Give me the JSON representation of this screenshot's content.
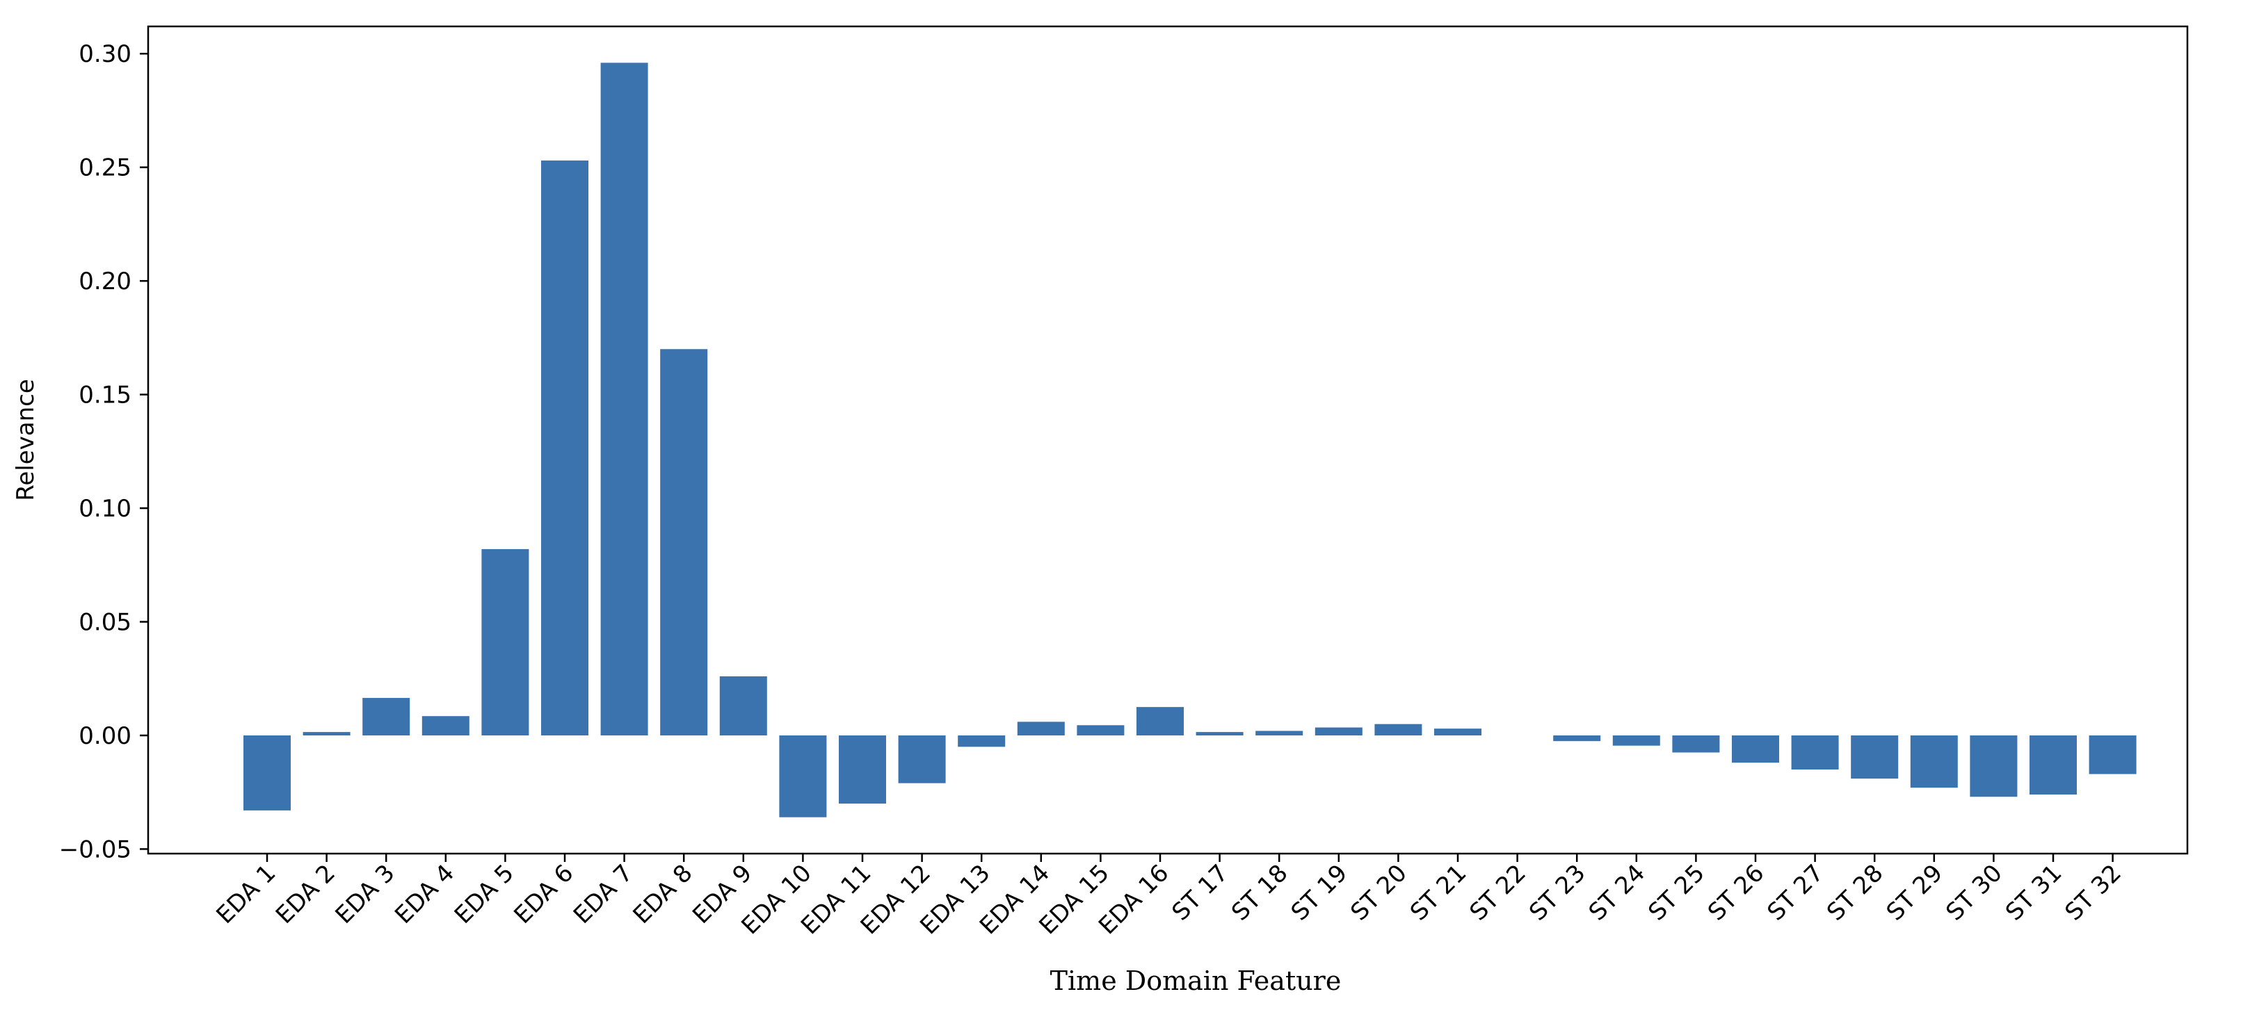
{
  "chart_data": {
    "type": "bar",
    "title": "",
    "xlabel": "Time Domain Feature",
    "ylabel": "Relevance",
    "ylim": [
      -0.052,
      0.312
    ],
    "yticks": [
      -0.05,
      0.0,
      0.05,
      0.1,
      0.15,
      0.2,
      0.25,
      0.3
    ],
    "ytick_labels": [
      "−0.05",
      "0.00",
      "0.05",
      "0.10",
      "0.15",
      "0.20",
      "0.25",
      "0.30"
    ],
    "grid": false,
    "legend": "none",
    "bar_color": "#3a73ae",
    "categories": [
      "EDA 1",
      "EDA 2",
      "EDA 3",
      "EDA 4",
      "EDA 5",
      "EDA 6",
      "EDA 7",
      "EDA 8",
      "EDA 9",
      "EDA 10",
      "EDA 11",
      "EDA 12",
      "EDA 13",
      "EDA 14",
      "EDA 15",
      "EDA 16",
      "ST 17",
      "ST 18",
      "ST 19",
      "ST 20",
      "ST 21",
      "ST 22",
      "ST 23",
      "ST 24",
      "ST 25",
      "ST 26",
      "ST 27",
      "ST 28",
      "ST 29",
      "ST 30",
      "ST 31",
      "ST 32"
    ],
    "values": [
      -0.033,
      0.0015,
      0.0165,
      0.0085,
      0.082,
      0.253,
      0.296,
      0.17,
      0.026,
      -0.036,
      -0.03,
      -0.021,
      -0.005,
      0.006,
      0.0045,
      0.0125,
      0.0015,
      0.002,
      0.0035,
      0.005,
      0.003,
      0.0,
      -0.0025,
      -0.0045,
      -0.0075,
      -0.012,
      -0.015,
      -0.019,
      -0.023,
      -0.027,
      -0.026,
      -0.017
    ]
  }
}
